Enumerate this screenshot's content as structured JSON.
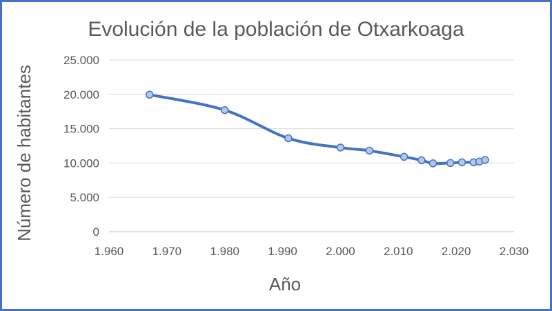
{
  "chart_data": {
    "type": "scatter",
    "title": "Evolución de la población de Otxarkoaga",
    "xlabel": "Año",
    "ylabel": "Número de habitantes",
    "xlim": [
      1960,
      2030
    ],
    "ylim": [
      0,
      25000
    ],
    "x_ticks": [
      "1.960",
      "1.970",
      "1.980",
      "1.990",
      "2.000",
      "2.010",
      "2.020",
      "2.030"
    ],
    "y_ticks": [
      "0",
      "5.000",
      "10.000",
      "15.000",
      "20.000",
      "25.000"
    ],
    "grid": "horizontal",
    "legend": "none",
    "smooth_line": true,
    "series": [
      {
        "x": [
          1967,
          1980,
          1991,
          2000,
          2005,
          2011,
          2014,
          2016,
          2019,
          2021,
          2023,
          2024,
          2025
        ],
        "y": [
          19950,
          17700,
          13600,
          12250,
          11800,
          10900,
          10400,
          9950,
          10000,
          10100,
          10100,
          10200,
          10450
        ]
      }
    ],
    "colors": {
      "line": "#4472c4",
      "marker_fill": "#b4c7e7",
      "marker_stroke": "#4472c4",
      "frame": "#4472c4"
    }
  }
}
